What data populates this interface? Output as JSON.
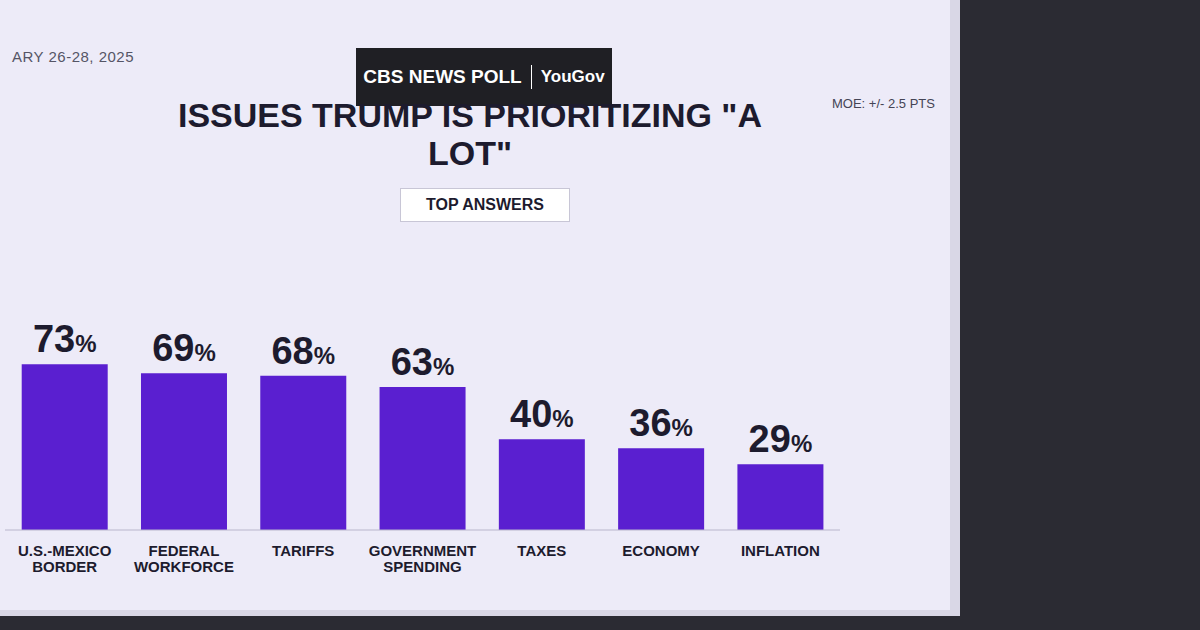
{
  "chart_data": {
    "type": "bar",
    "title": "ISSUES TRUMP IS PRIORITIZING \"A LOT\"",
    "subtitle": "TOP ANSWERS",
    "source": "CBS NEWS POLL",
    "source_partner": "YouGov",
    "date": "ARY 26-28, 2025",
    "note": "MOE: +/- 2.5 PTS",
    "categories": [
      "U.S.-MEXICO BORDER",
      "FEDERAL WORKFORCE",
      "TARIFFS",
      "GOVERNMENT SPENDING",
      "TAXES",
      "ECONOMY",
      "INFLATION"
    ],
    "values": [
      73,
      69,
      68,
      63,
      40,
      36,
      29
    ],
    "value_labels": [
      "73%",
      "69%",
      "68%",
      "63%",
      "40%",
      "36%",
      "29%"
    ],
    "color": "#5a1fd0",
    "ylim": [
      0,
      100
    ],
    "data_labels": true,
    "tick_labels": "x"
  }
}
